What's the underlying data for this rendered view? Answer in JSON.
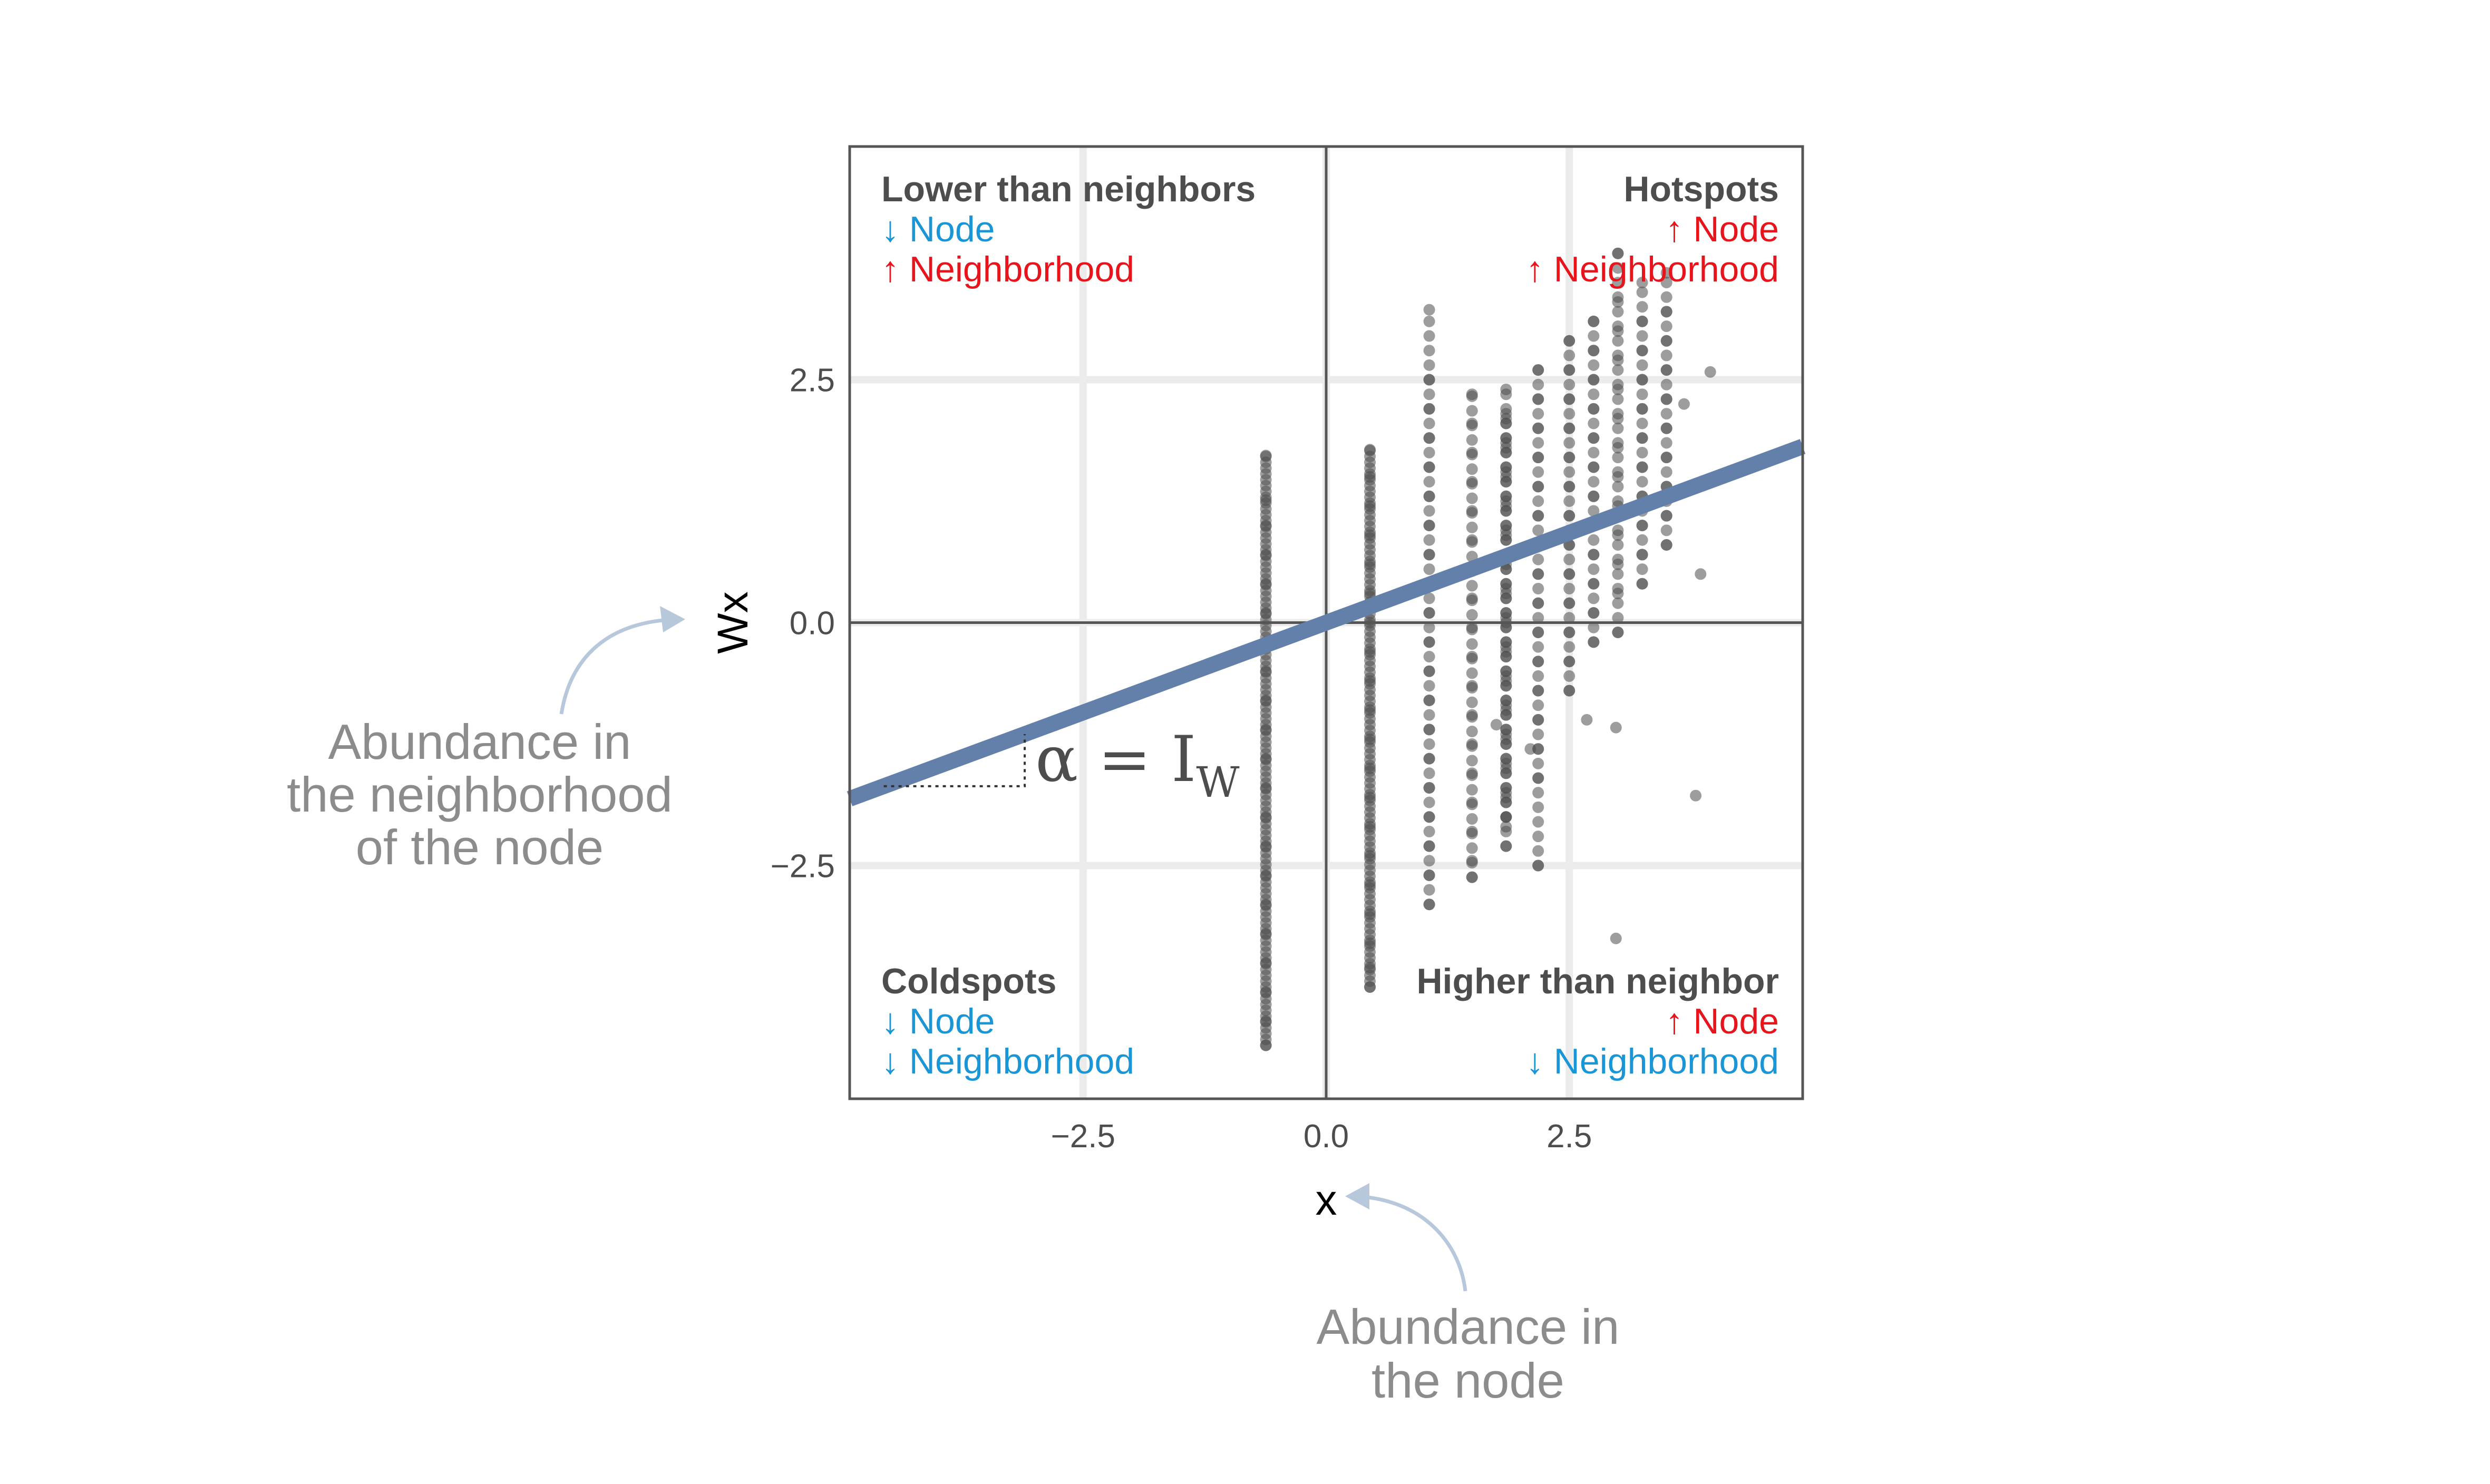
{
  "chart_data": {
    "type": "scatter",
    "title": "",
    "xlabel": "x",
    "ylabel": "Wx",
    "xlim": [
      -4.9,
      4.9
    ],
    "ylim": [
      -4.9,
      4.9
    ],
    "xticks": [
      -2.5,
      0.0,
      2.5
    ],
    "yticks": [
      -2.5,
      0.0,
      2.5
    ],
    "xtick_labels": [
      "−2.5",
      "0.0",
      "2.5"
    ],
    "ytick_labels": [
      "−2.5",
      "0.0",
      "2.5"
    ],
    "grid": true,
    "legend": "none",
    "point_color": "#4d4d4d",
    "columns": [
      {
        "x": -0.62,
        "values": [
          1.72,
          1.26,
          1.0,
          0.7,
          0.4,
          0.1,
          -0.2,
          -0.5,
          -0.8,
          -1.1,
          -1.4,
          -1.7,
          -2.0,
          -2.3,
          -2.6,
          -2.9,
          -3.2,
          -3.5,
          -3.8,
          -4.1,
          -4.35
        ]
      },
      {
        "x": 0.45,
        "values": [
          1.78,
          1.5,
          1.2,
          0.9,
          0.6,
          0.3,
          0.0,
          -0.3,
          -0.6,
          -0.9,
          -1.2,
          -1.5,
          -1.8,
          -2.1,
          -2.4,
          -2.7,
          -3.0,
          -3.3,
          -3.55,
          -3.75
        ]
      },
      {
        "x": 1.06,
        "values": [
          3.22,
          2.5,
          2.2,
          1.9,
          1.6,
          1.3,
          1.0,
          0.7,
          0.4,
          0.1,
          -0.2,
          -0.5,
          -0.8,
          -1.1,
          -1.4,
          -1.7,
          -2.0,
          -2.3,
          -2.6,
          -2.9
        ]
      },
      {
        "x": 1.5,
        "values": [
          2.35,
          2.05,
          1.75,
          1.45,
          1.15,
          0.85,
          0.55,
          0.25,
          -0.05,
          -0.35,
          -0.65,
          -0.95,
          -1.25,
          -1.55,
          -1.85,
          -2.15,
          -2.45,
          -2.62
        ]
      },
      {
        "x": 1.85,
        "values": [
          2.4,
          2.1,
          1.8,
          1.5,
          1.2,
          0.9,
          0.6,
          0.3,
          0.0,
          -0.3,
          -0.6,
          -0.9,
          -1.2,
          -1.5,
          -1.8,
          -2.1,
          -2.3
        ]
      },
      {
        "x": 1.85,
        "values": [
          2.15,
          1.85,
          1.55,
          1.25,
          0.95,
          0.65,
          0.35,
          0.05,
          -0.25,
          -0.55,
          -0.85,
          -1.15,
          -1.45,
          -1.75,
          -2.0
        ]
      },
      {
        "x": 2.18,
        "values": [
          2.6,
          2.3,
          2.0,
          1.7,
          1.4,
          1.1,
          0.8,
          0.5,
          0.2,
          -0.1,
          -0.4,
          -0.7,
          -1.0,
          -1.3,
          -1.6,
          -2.5
        ]
      },
      {
        "x": 2.5,
        "values": [
          2.9,
          2.6,
          2.3,
          2.0,
          1.7,
          1.4,
          1.1,
          0.8,
          0.5,
          0.2,
          -0.1,
          -0.4,
          -0.7
        ]
      },
      {
        "x": 2.75,
        "values": [
          3.1,
          2.8,
          2.5,
          2.2,
          1.9,
          1.6,
          1.3,
          1.0,
          0.7,
          0.4,
          0.1,
          -0.2
        ]
      },
      {
        "x": 3.0,
        "values": [
          3.8,
          3.3,
          3.0,
          2.7,
          2.4,
          2.1,
          1.8,
          1.5,
          1.2,
          0.9,
          0.6,
          0.3,
          -0.1
        ]
      },
      {
        "x": 3.25,
        "values": [
          3.5,
          3.1,
          2.8,
          2.5,
          2.2,
          1.9,
          1.6,
          1.3,
          1.0,
          0.7,
          0.4
        ]
      },
      {
        "x": 3.5,
        "values": [
          3.6,
          3.2,
          2.9,
          2.6,
          2.3,
          2.0,
          1.7,
          1.4,
          1.1,
          0.8
        ]
      }
    ],
    "scattered_points": [
      {
        "x": 2.68,
        "y": -1.0
      },
      {
        "x": 2.98,
        "y": -1.08
      },
      {
        "x": 2.98,
        "y": -3.25
      },
      {
        "x": 3.8,
        "y": -1.78
      },
      {
        "x": 3.95,
        "y": 2.58
      },
      {
        "x": 3.68,
        "y": 2.25
      },
      {
        "x": 3.85,
        "y": 0.5
      },
      {
        "x": 2.1,
        "y": -1.3
      },
      {
        "x": 1.75,
        "y": -1.05
      }
    ],
    "regression_line": {
      "slope": 0.37,
      "intercept": 0.0,
      "color": "#6280aa"
    },
    "formula": {
      "main": "α = I",
      "subscript": "W"
    },
    "quadrants": [
      {
        "title": "Lower than neighbors",
        "lines": [
          {
            "text": "↓ Node",
            "color": "#1a96d6"
          },
          {
            "text": "↑ Neighborhood",
            "color": "#e8141c"
          }
        ],
        "position": "top-left"
      },
      {
        "title": "Hotspots",
        "lines": [
          {
            "text": "↑ Node",
            "color": "#e8141c"
          },
          {
            "text": "↑ Neighborhood",
            "color": "#e8141c"
          }
        ],
        "position": "top-right"
      },
      {
        "title": "Coldspots",
        "lines": [
          {
            "text": "↓ Node",
            "color": "#1a96d6"
          },
          {
            "text": "↓ Neighborhood",
            "color": "#1a96d6"
          }
        ],
        "position": "bottom-left"
      },
      {
        "title": "Higher than neighbor",
        "lines": [
          {
            "text": "↑ Node",
            "color": "#e8141c"
          },
          {
            "text": "↓ Neighborhood",
            "color": "#1a96d6"
          }
        ],
        "position": "bottom-right"
      }
    ],
    "annotations": [
      {
        "name": "neighborhood-note",
        "lines": [
          "Abundance in",
          "the neighborhood",
          "of the node"
        ],
        "points_to": "ylabel"
      },
      {
        "name": "node-note",
        "lines": [
          "Abundance in",
          "the node"
        ],
        "points_to": "xlabel"
      }
    ],
    "arrow_color": "#b8c8dc"
  }
}
